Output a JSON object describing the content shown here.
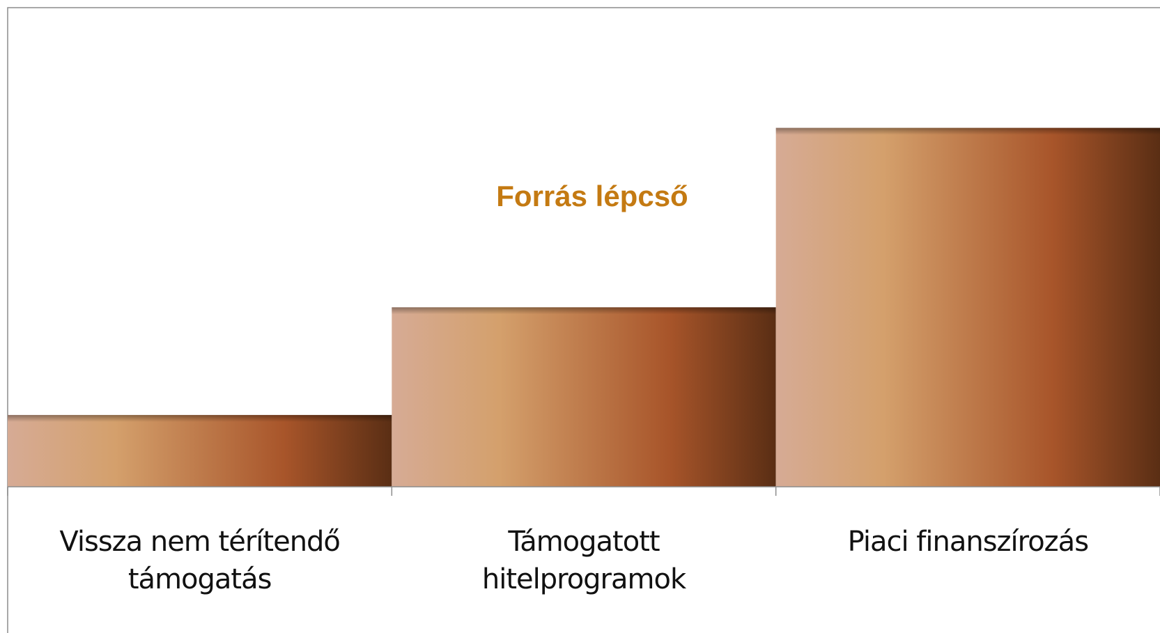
{
  "chart_data": {
    "type": "bar",
    "title": "Forrás lépcső",
    "categories": [
      "Vissza nem térítendő támogatás",
      "Támogatott hitelprogramok",
      "Piaci finanszírozás"
    ],
    "values": [
      1,
      2.5,
      5
    ],
    "colors": [
      "#d6ab95",
      "#d4a06c",
      "#a8552a",
      "#5a2e14"
    ],
    "ylim": [
      0,
      6.5
    ]
  }
}
